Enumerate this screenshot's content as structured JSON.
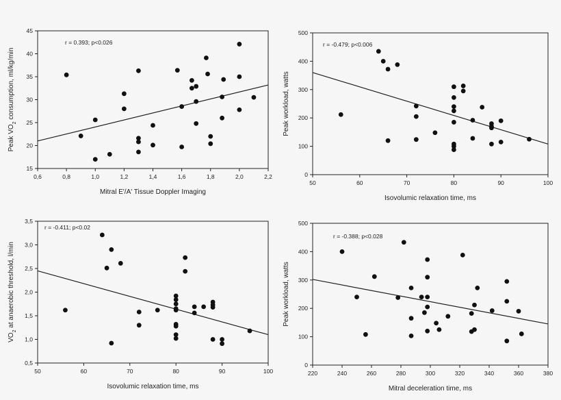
{
  "chart_data": [
    {
      "type": "scatter",
      "annotation": "r = 0.393; p<0.026",
      "xlabel": "Mitral E'/A' Tissue Doppler Imaging",
      "ylabel": "Peak VO₂ consumption, ml/kg/min",
      "xlim": [
        0.6,
        2.2
      ],
      "ylim": [
        15,
        45
      ],
      "x_ticks": [
        "0,6",
        "0,8",
        "1,0",
        "1,2",
        "1,4",
        "1,6",
        "1,8",
        "2,0",
        "2,2"
      ],
      "y_ticks": [
        "15",
        "20",
        "25",
        "30",
        "35",
        "40",
        "45"
      ],
      "points": [
        [
          0.8,
          35.4
        ],
        [
          0.9,
          22.1
        ],
        [
          1.0,
          25.6
        ],
        [
          1.0,
          17.0
        ],
        [
          1.1,
          18.1
        ],
        [
          1.2,
          31.3
        ],
        [
          1.2,
          28.0
        ],
        [
          1.3,
          36.3
        ],
        [
          1.3,
          21.6
        ],
        [
          1.3,
          20.8
        ],
        [
          1.3,
          18.6
        ],
        [
          1.4,
          24.4
        ],
        [
          1.4,
          20.1
        ],
        [
          1.57,
          36.4
        ],
        [
          1.6,
          28.5
        ],
        [
          1.6,
          19.7
        ],
        [
          1.67,
          34.2
        ],
        [
          1.67,
          32.5
        ],
        [
          1.7,
          32.9
        ],
        [
          1.7,
          29.6
        ],
        [
          1.7,
          24.8
        ],
        [
          1.77,
          39.1
        ],
        [
          1.78,
          35.6
        ],
        [
          1.8,
          22.0
        ],
        [
          1.8,
          20.4
        ],
        [
          1.88,
          30.6
        ],
        [
          1.88,
          26.0
        ],
        [
          1.89,
          34.4
        ],
        [
          2.0,
          42.1
        ],
        [
          2.0,
          35.0
        ],
        [
          2.0,
          27.8
        ],
        [
          2.1,
          30.5
        ]
      ],
      "trend": [
        [
          0.6,
          21.0
        ],
        [
          2.2,
          33.2
        ]
      ]
    },
    {
      "type": "scatter",
      "annotation": "r = -0.479; p<0.006",
      "xlabel": "Isovolumic relaxation time, ms",
      "ylabel": "Peak workload, watts",
      "xlim": [
        50,
        100
      ],
      "ylim": [
        0,
        500
      ],
      "x_ticks": [
        "50",
        "60",
        "70",
        "80",
        "90",
        "100"
      ],
      "y_ticks": [
        "0",
        "100",
        "200",
        "300",
        "400",
        "500"
      ],
      "points": [
        [
          56,
          212
        ],
        [
          64,
          435
        ],
        [
          65,
          400
        ],
        [
          66,
          372
        ],
        [
          66,
          120
        ],
        [
          68,
          388
        ],
        [
          72,
          242
        ],
        [
          72,
          205
        ],
        [
          72,
          124
        ],
        [
          76,
          148
        ],
        [
          80,
          310
        ],
        [
          80,
          272
        ],
        [
          80,
          240
        ],
        [
          80,
          225
        ],
        [
          80,
          185
        ],
        [
          80,
          108
        ],
        [
          80,
          100
        ],
        [
          80,
          88
        ],
        [
          82,
          313
        ],
        [
          82,
          295
        ],
        [
          84,
          192
        ],
        [
          84,
          128
        ],
        [
          86,
          238
        ],
        [
          88,
          180
        ],
        [
          88,
          170
        ],
        [
          88,
          165
        ],
        [
          88,
          108
        ],
        [
          90,
          190
        ],
        [
          90,
          115
        ],
        [
          96,
          125
        ]
      ],
      "trend": [
        [
          50,
          360
        ],
        [
          100,
          108
        ]
      ]
    },
    {
      "type": "scatter",
      "annotation": "r = -0.411; p<0.02",
      "xlabel": "Isovolumic relaxation time, ms",
      "ylabel": "VO₂ at anaerobic threshold, l/min",
      "xlim": [
        50,
        100
      ],
      "ylim": [
        0.5,
        3.5
      ],
      "x_ticks": [
        "50",
        "60",
        "70",
        "80",
        "90",
        "100"
      ],
      "y_ticks": [
        "0,5",
        "1,0",
        "1,5",
        "2,0",
        "2,5",
        "3,0",
        "3,5"
      ],
      "points": [
        [
          56,
          1.62
        ],
        [
          64,
          3.21
        ],
        [
          65,
          2.51
        ],
        [
          66,
          2.9
        ],
        [
          66,
          0.92
        ],
        [
          68,
          2.61
        ],
        [
          72,
          1.58
        ],
        [
          72,
          1.3
        ],
        [
          76,
          1.62
        ],
        [
          80,
          1.92
        ],
        [
          80,
          1.84
        ],
        [
          80,
          1.75
        ],
        [
          80,
          1.65
        ],
        [
          80,
          1.62
        ],
        [
          80,
          1.32
        ],
        [
          80,
          1.28
        ],
        [
          80,
          1.1
        ],
        [
          80,
          1.02
        ],
        [
          82,
          2.73
        ],
        [
          82,
          2.44
        ],
        [
          84,
          1.69
        ],
        [
          84,
          1.56
        ],
        [
          86,
          1.69
        ],
        [
          88,
          1.79
        ],
        [
          88,
          1.73
        ],
        [
          88,
          1.68
        ],
        [
          88,
          1.0
        ],
        [
          90,
          1.0
        ],
        [
          90,
          0.91
        ],
        [
          96,
          1.18
        ]
      ],
      "trend": [
        [
          50,
          2.45
        ],
        [
          100,
          1.1
        ]
      ]
    },
    {
      "type": "scatter",
      "annotation": "r = -0.388; p<0.028",
      "xlabel": "Mitral deceleration time, ms",
      "ylabel": "Peak workload, watts",
      "xlim": [
        220,
        380
      ],
      "ylim": [
        0,
        500
      ],
      "x_ticks": [
        "220",
        "240",
        "260",
        "280",
        "300",
        "320",
        "340",
        "360",
        "380"
      ],
      "y_ticks": [
        "0",
        "100",
        "200",
        "300",
        "400",
        "500"
      ],
      "points": [
        [
          240,
          400
        ],
        [
          250,
          240
        ],
        [
          256,
          108
        ],
        [
          262,
          312
        ],
        [
          278,
          238
        ],
        [
          282,
          433
        ],
        [
          287,
          272
        ],
        [
          287,
          165
        ],
        [
          287,
          103
        ],
        [
          294,
          240
        ],
        [
          296,
          185
        ],
        [
          298,
          372
        ],
        [
          298,
          310
        ],
        [
          298,
          240
        ],
        [
          298,
          205
        ],
        [
          298,
          120
        ],
        [
          304,
          148
        ],
        [
          306,
          125
        ],
        [
          312,
          172
        ],
        [
          322,
          388
        ],
        [
          328,
          182
        ],
        [
          328,
          118
        ],
        [
          330,
          212
        ],
        [
          330,
          125
        ],
        [
          332,
          272
        ],
        [
          342,
          192
        ],
        [
          352,
          295
        ],
        [
          352,
          225
        ],
        [
          352,
          85
        ],
        [
          360,
          190
        ],
        [
          362,
          110
        ]
      ],
      "trend": [
        [
          220,
          302
        ],
        [
          380,
          145
        ]
      ]
    }
  ]
}
